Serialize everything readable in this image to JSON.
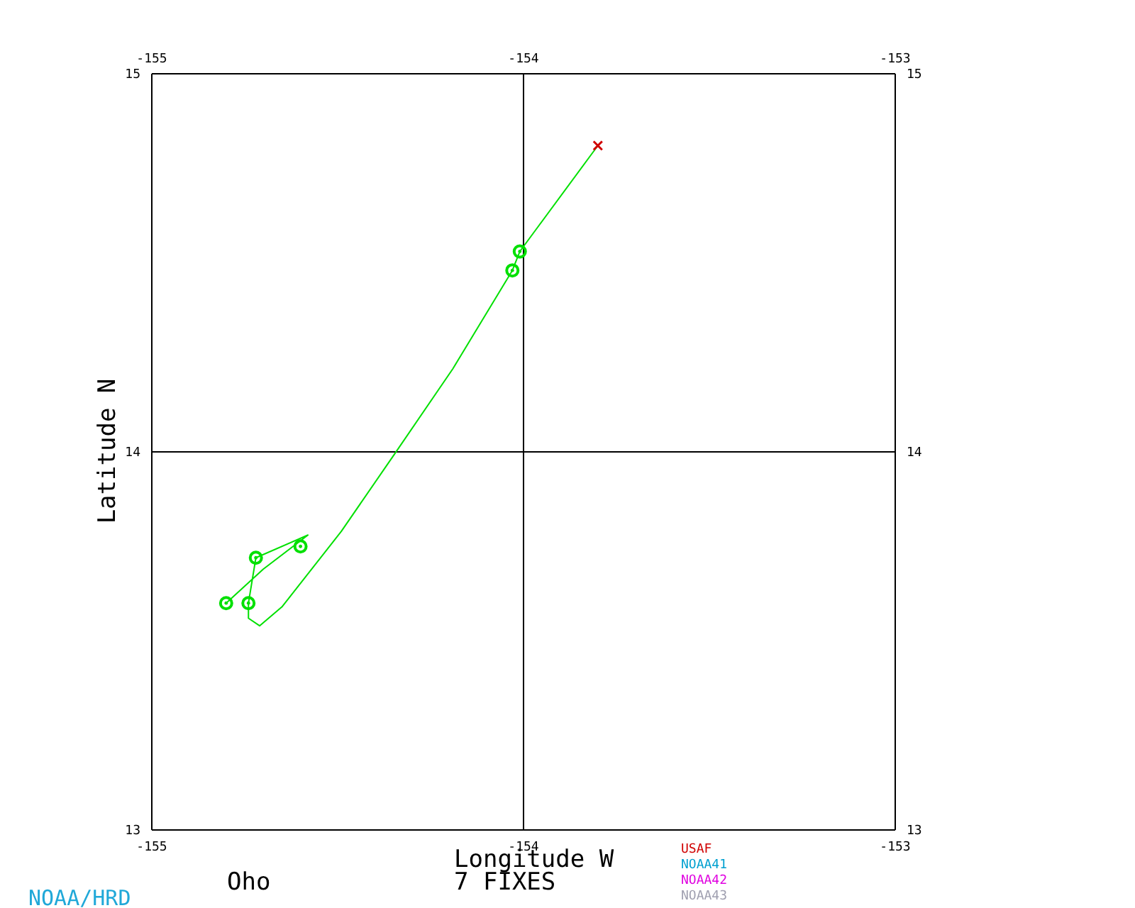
{
  "chart_data": {
    "type": "line",
    "xlabel": "Longitude W",
    "ylabel": "Latitude N",
    "xlim": [
      -155,
      -153
    ],
    "xticks": [
      -155,
      -154,
      -153
    ],
    "x2lim": [
      -155,
      -153
    ],
    "x2ticks": [
      -155,
      -154,
      -153
    ],
    "ylim": [
      13,
      15
    ],
    "yticks": [
      13,
      14,
      15
    ],
    "y2lim": [
      13,
      15
    ],
    "y2ticks": [
      13,
      14,
      15
    ],
    "grid": true,
    "legend": "bottom",
    "annotations": [
      "Oho",
      "7 FIXES",
      "NOAA/HRD"
    ],
    "series": [
      {
        "color": "#00e000",
        "marker": "none",
        "x": [
          -154.8,
          -154.7,
          -154.58,
          -154.72,
          -154.74,
          -154.74,
          -154.71,
          -154.65,
          -154.49,
          -154.35,
          -154.19,
          -154.03,
          -154.01,
          -153.8
        ],
        "values": [
          13.6,
          13.69,
          13.78,
          13.72,
          13.6,
          13.56,
          13.54,
          13.59,
          13.79,
          13.99,
          14.22,
          14.48,
          14.53,
          14.81
        ]
      },
      {
        "type": "scatter",
        "color": "#00e000",
        "marker": "circle",
        "x": [
          -154.8,
          -154.74,
          -154.72,
          -154.6,
          -154.03,
          -154.01
        ],
        "values": [
          13.6,
          13.6,
          13.72,
          13.75,
          14.48,
          14.53
        ]
      },
      {
        "type": "scatter",
        "name": "USAF",
        "color": "#d00000",
        "marker": "cross",
        "x": [
          -153.8
        ],
        "values": [
          14.81
        ]
      },
      {
        "type": "scatter",
        "name": "NOAA41",
        "color": "#00a0d0",
        "marker": "circle"
      },
      {
        "type": "scatter",
        "name": "NOAA42",
        "color": "#e000e0",
        "marker": "circle"
      },
      {
        "type": "scatter",
        "name": "NOAA43",
        "color": "#a0a0b0",
        "marker": "circle"
      }
    ]
  }
}
